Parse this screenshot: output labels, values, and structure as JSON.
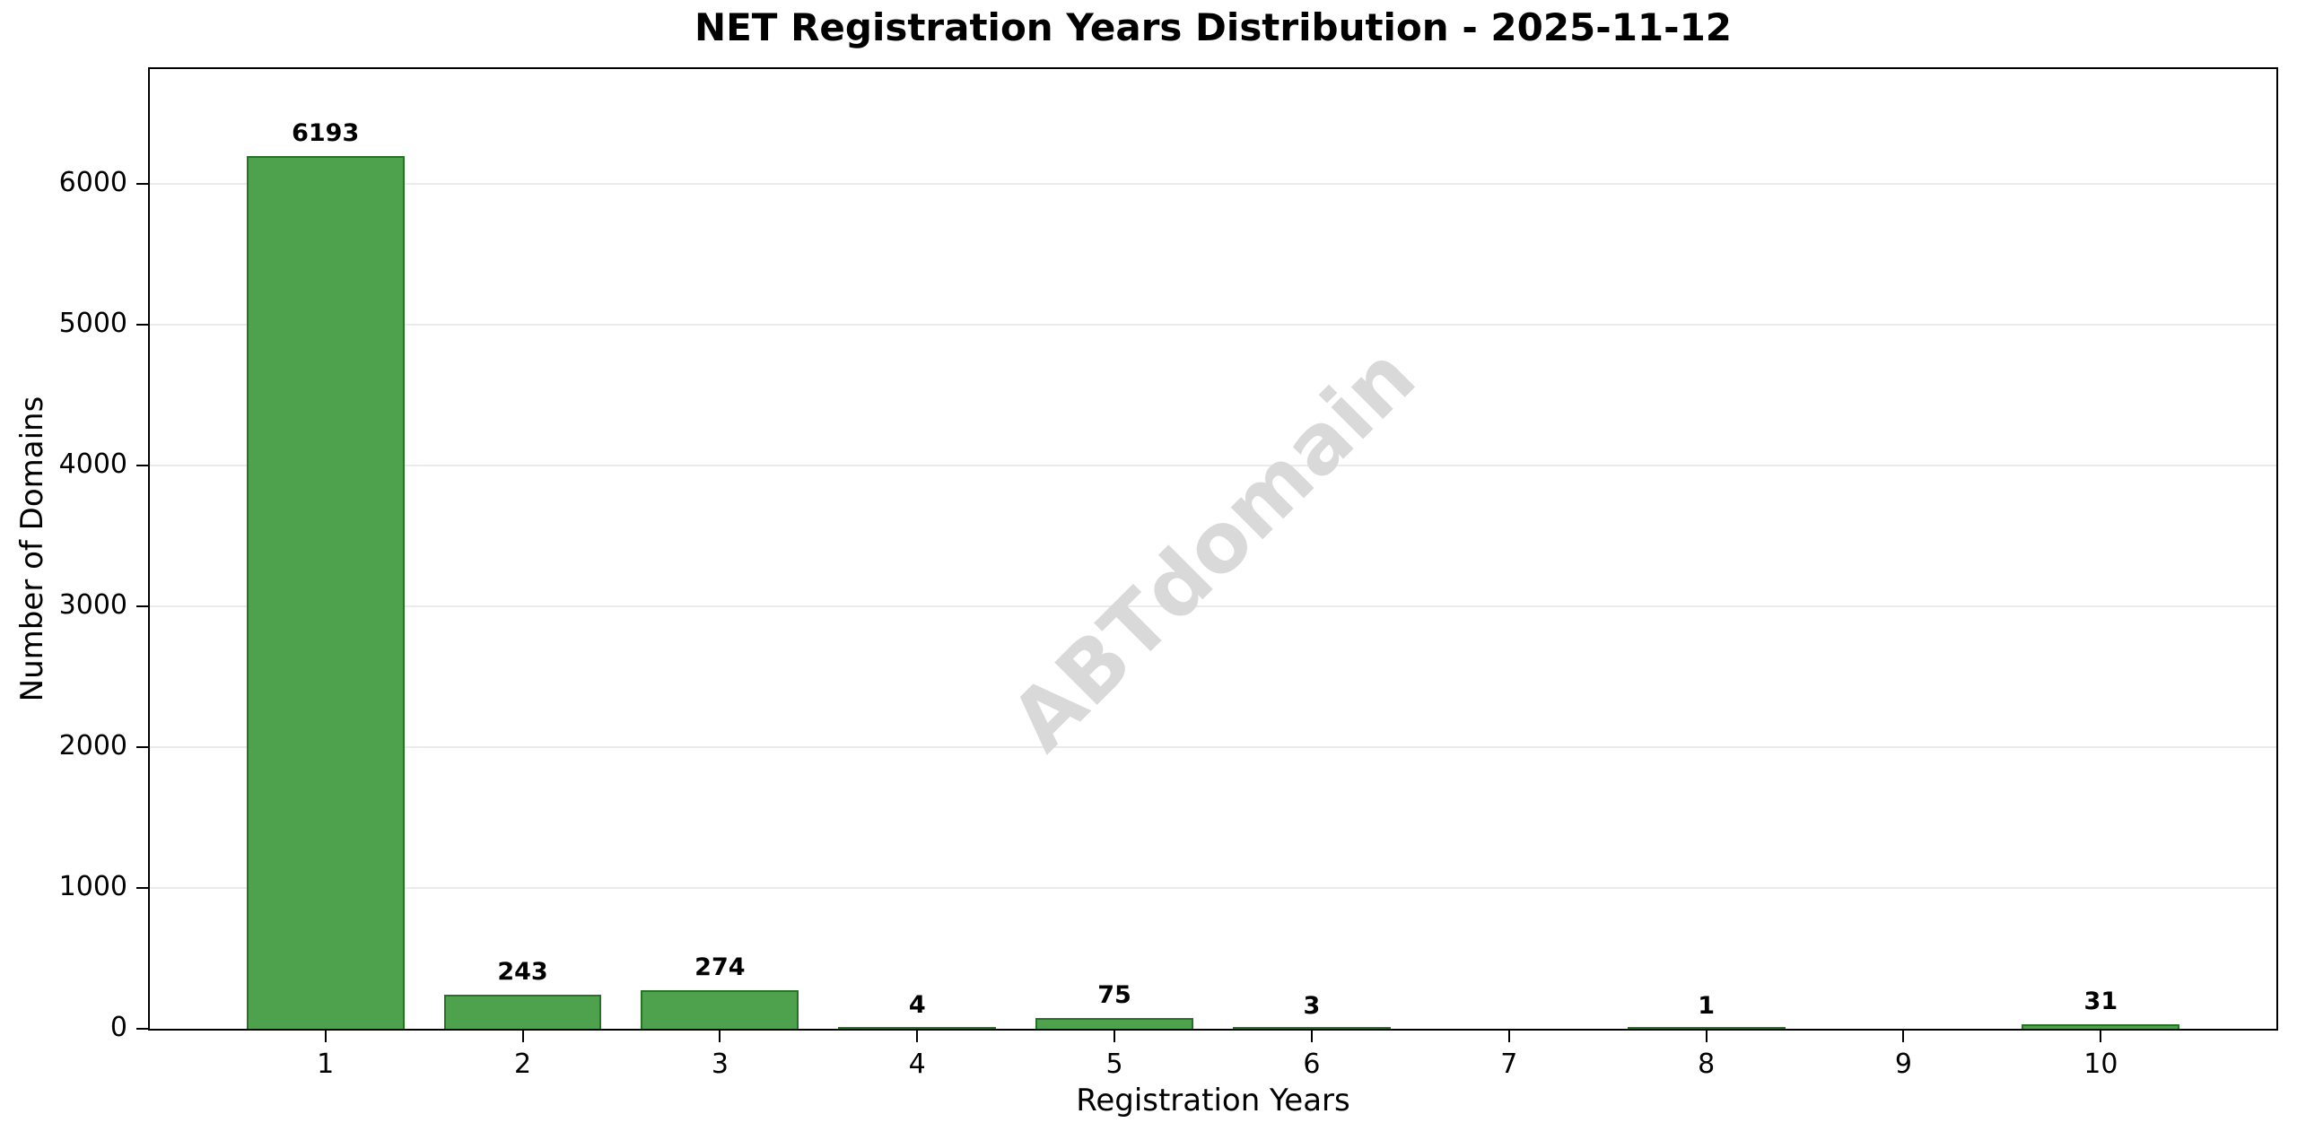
{
  "chart_data": {
    "type": "bar",
    "title": "NET Registration Years Distribution - 2025-11-12",
    "xlabel": "Registration Years",
    "ylabel": "Number of Domains",
    "categories": [
      1,
      2,
      3,
      4,
      5,
      6,
      7,
      8,
      9,
      10
    ],
    "values": [
      6193,
      243,
      274,
      4,
      75,
      3,
      0,
      1,
      0,
      31
    ],
    "y_ticks": [
      0,
      1000,
      2000,
      3000,
      4000,
      5000,
      6000
    ],
    "xlim": [
      0.11,
      10.89
    ],
    "ylim": [
      0,
      6812
    ],
    "bar_width_units": 0.8,
    "grid": "horizontal",
    "legend": "none",
    "bar_color": "#4EA24E",
    "bar_edge_color": "#267326",
    "grid_color": "#ebebeb",
    "watermark": "ABTdomain",
    "watermark_color": "#d9d9d9"
  }
}
